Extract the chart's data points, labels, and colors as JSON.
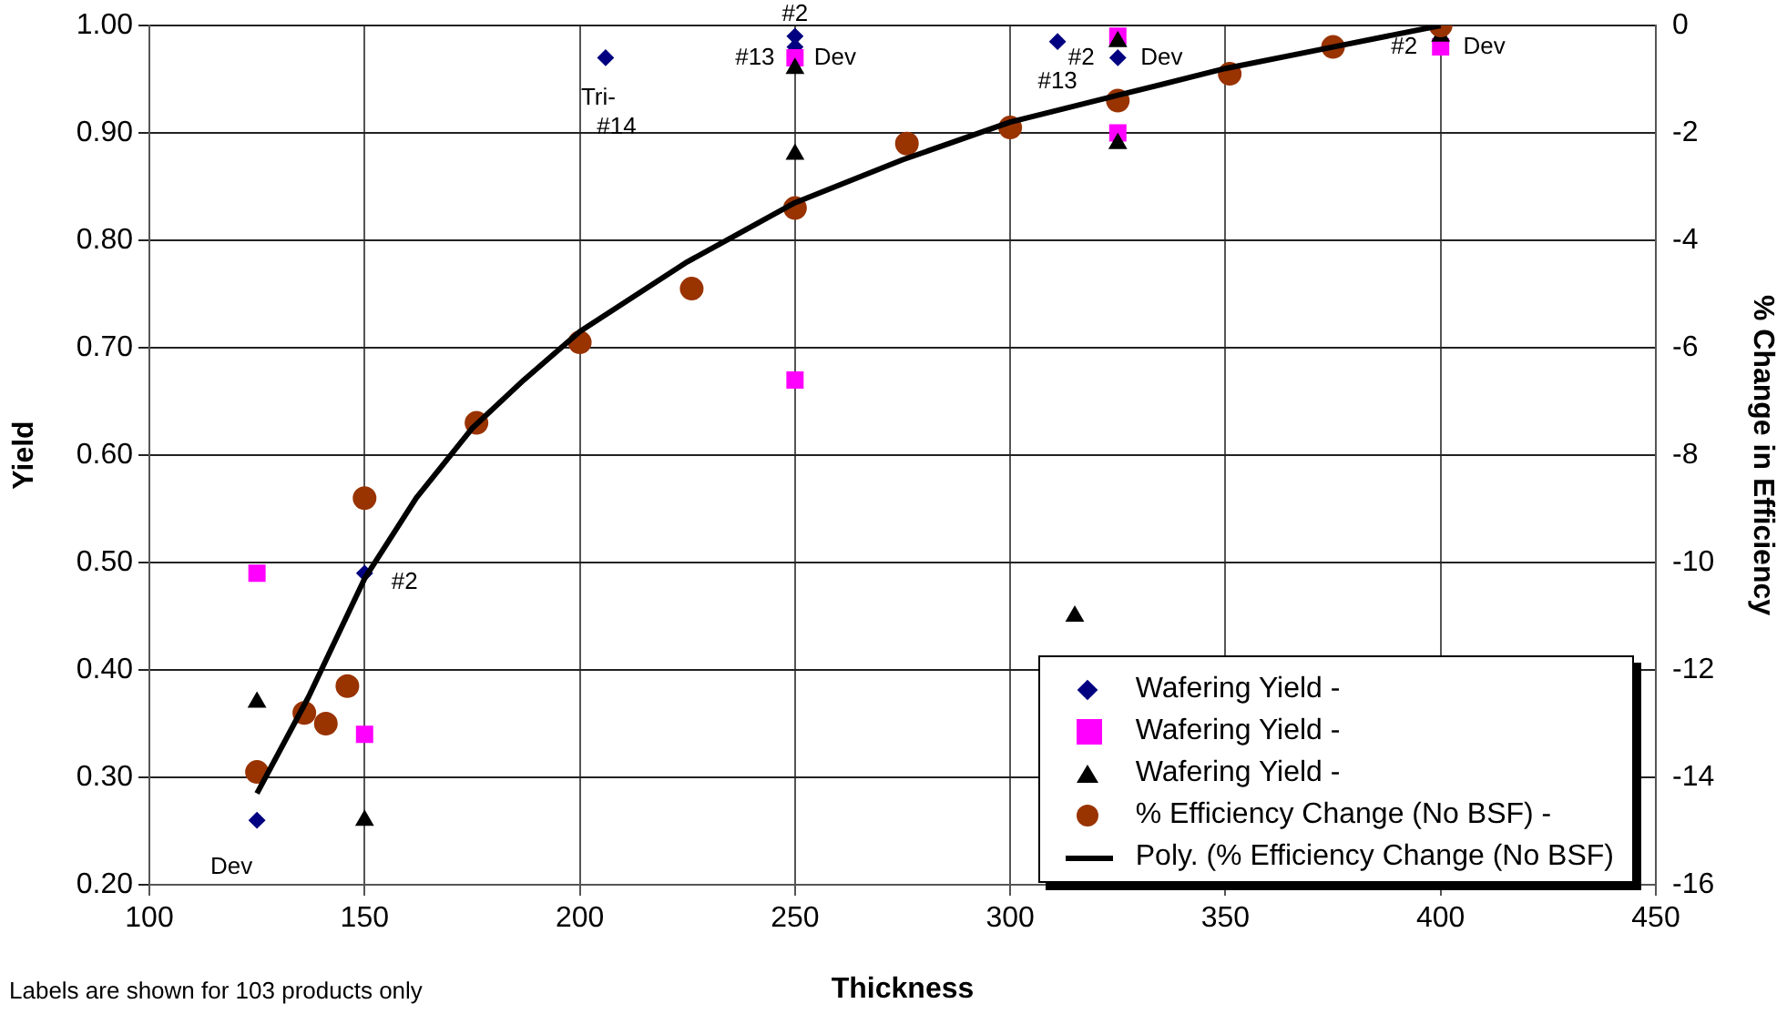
{
  "chart_data": {
    "type": "scatter",
    "xlabel": "Thickness",
    "ylabel": "Yield",
    "y2label": "% Change in Efficiency",
    "xlim": [
      100,
      450
    ],
    "xticks": [
      100,
      150,
      200,
      250,
      300,
      350,
      400,
      450
    ],
    "ylim": [
      0.2,
      1.0
    ],
    "yticks": [
      {
        "value": 0.2,
        "label": "0.20"
      },
      {
        "value": 0.3,
        "label": "0.30"
      },
      {
        "value": 0.4,
        "label": "0.40"
      },
      {
        "value": 0.5,
        "label": "0.50"
      },
      {
        "value": 0.6,
        "label": "0.60"
      },
      {
        "value": 0.7,
        "label": "0.70"
      },
      {
        "value": 0.8,
        "label": "0.80"
      },
      {
        "value": 0.9,
        "label": "0.90"
      },
      {
        "value": 1.0,
        "label": "1.00"
      }
    ],
    "y2lim": [
      -16,
      0
    ],
    "y2ticks": [
      -16,
      -14,
      -12,
      -10,
      -8,
      -6,
      -4,
      -2,
      0
    ],
    "grid": true,
    "legend": "bottom right",
    "series": [
      {
        "name": "Wafering Yield -",
        "color": "#000080",
        "marker": "diamond",
        "x": [
          125,
          150,
          206,
          250,
          250,
          311,
          325
        ],
        "values": [
          0.26,
          0.49,
          0.97,
          0.99,
          0.98,
          0.985,
          0.97
        ]
      },
      {
        "name": "Wafering Yield -",
        "color": "#ff00ff",
        "marker": "square",
        "x": [
          125,
          150,
          250,
          250,
          325,
          325,
          400
        ],
        "values": [
          0.49,
          0.34,
          0.97,
          0.67,
          0.99,
          0.9,
          0.98
        ]
      },
      {
        "name": "Wafering Yield -",
        "color": "#000000",
        "marker": "triangle",
        "x": [
          125,
          150,
          250,
          250,
          315,
          325,
          325,
          400
        ],
        "values": [
          0.37,
          0.26,
          0.96,
          0.88,
          0.45,
          0.985,
          0.89,
          0.99
        ]
      },
      {
        "name": "% Efficiency Change (No BSF) -",
        "color": "#993300",
        "marker": "circle",
        "axis": "y2",
        "x": [
          125,
          136,
          141,
          146,
          150,
          176,
          200,
          226,
          250,
          276,
          300,
          325,
          351,
          375,
          400
        ],
        "values": [
          -13.9,
          -12.8,
          -13.0,
          -12.3,
          -8.8,
          -7.4,
          -5.9,
          -4.9,
          -3.4,
          -2.2,
          -1.9,
          -1.4,
          -0.9,
          -0.4,
          0
        ]
      },
      {
        "name": "Poly. (% Efficiency Change (No BSF)",
        "type": "line",
        "color": "#000000",
        "marker": "none",
        "line_style": "solid",
        "axis": "y2",
        "x": [
          125,
          137,
          150,
          162,
          175,
          187,
          200,
          225,
          250,
          275,
          300,
          325,
          350,
          375,
          400
        ],
        "values": [
          -14.3,
          -12.5,
          -10.3,
          -8.8,
          -7.5,
          -6.6,
          -5.7,
          -4.4,
          -3.3,
          -2.5,
          -1.8,
          -1.3,
          -0.8,
          -0.4,
          0
        ]
      }
    ],
    "annotations": [
      {
        "text": "Dev",
        "x": 125,
        "y": 0.26
      },
      {
        "text": "#2",
        "x": 150,
        "y": 0.49
      },
      {
        "text": "Tri-",
        "x": 206,
        "y": 0.97
      },
      {
        "text": "#14",
        "x": 206,
        "y": 0.97
      },
      {
        "text": "#2",
        "x": 250,
        "y": 0.99
      },
      {
        "text": "#13",
        "x": 250,
        "y": 0.97
      },
      {
        "text": "Dev",
        "x": 250,
        "y": 0.97
      },
      {
        "text": "#13",
        "x": 311,
        "y": 0.985
      },
      {
        "text": "#2",
        "x": 325,
        "y": 0.97
      },
      {
        "text": "Dev",
        "x": 325,
        "y": 0.97
      },
      {
        "text": "#2",
        "x": 400,
        "y": 0.98
      },
      {
        "text": "Dev",
        "x": 400,
        "y": 0.98
      },
      "Labels are shown for 103 products only"
    ]
  }
}
